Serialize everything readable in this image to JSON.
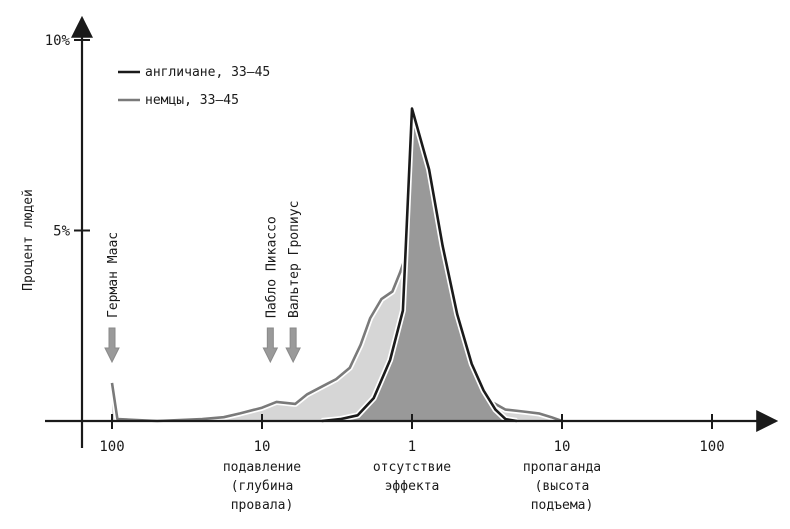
{
  "chart_data": {
    "type": "area",
    "ylabel": "Процент людей",
    "y_ticks": [
      {
        "value": 10,
        "label": "10%"
      },
      {
        "value": 5,
        "label": "5%"
      }
    ],
    "ylim": [
      0,
      10
    ],
    "x_ticks": [
      {
        "value": -100,
        "label": "100"
      },
      {
        "value": -10,
        "label": "10"
      },
      {
        "value": 1,
        "label": "1"
      },
      {
        "value": 10,
        "label": "10"
      },
      {
        "value": 100,
        "label": "100"
      }
    ],
    "category_labels": [
      {
        "at": -10,
        "lines": [
          "подавление",
          "(глубина",
          "провала)"
        ]
      },
      {
        "at": 1,
        "lines": [
          "отсутствие",
          "эффекта"
        ]
      },
      {
        "at": 10,
        "lines": [
          "пропаганда",
          "(высота",
          "подъема)"
        ]
      }
    ],
    "series": [
      {
        "name": "англичане, 33–45",
        "color": "#1a1a1a",
        "fill": "#999999",
        "points": [
          [
            -4.0,
            0
          ],
          [
            -3.0,
            0.05
          ],
          [
            -2.3,
            0.15
          ],
          [
            -1.8,
            0.6
          ],
          [
            -1.4,
            1.6
          ],
          [
            -1.15,
            2.9
          ],
          [
            1,
            8.2
          ],
          [
            1.3,
            6.6
          ],
          [
            1.6,
            4.6
          ],
          [
            2.0,
            2.8
          ],
          [
            2.5,
            1.5
          ],
          [
            3.0,
            0.8
          ],
          [
            3.6,
            0.3
          ],
          [
            4.2,
            0.05
          ],
          [
            5,
            0
          ]
        ]
      },
      {
        "name": "немцы, 33–45",
        "color": "#7a7a7a",
        "fill": "#d6d6d6",
        "points": [
          [
            -100,
            1.0
          ],
          [
            -92,
            0.05
          ],
          [
            -50,
            0
          ],
          [
            -25,
            0.05
          ],
          [
            -18,
            0.1
          ],
          [
            -14,
            0.2
          ],
          [
            -10,
            0.35
          ],
          [
            -8,
            0.5
          ],
          [
            -6,
            0.45
          ],
          [
            -5,
            0.7
          ],
          [
            -4,
            0.9
          ],
          [
            -3.2,
            1.1
          ],
          [
            -2.6,
            1.4
          ],
          [
            -2.2,
            2.0
          ],
          [
            -1.9,
            2.7
          ],
          [
            -1.6,
            3.2
          ],
          [
            -1.35,
            3.4
          ],
          [
            -1.2,
            3.9
          ],
          [
            1,
            4.8
          ],
          [
            1.15,
            4.3
          ],
          [
            1.3,
            3.6
          ],
          [
            1.5,
            3.8
          ],
          [
            1.7,
            3.0
          ],
          [
            2.0,
            2.1
          ],
          [
            2.4,
            1.2
          ],
          [
            2.9,
            0.7
          ],
          [
            3.4,
            0.5
          ],
          [
            4.2,
            0.3
          ],
          [
            5.5,
            0.25
          ],
          [
            7,
            0.2
          ],
          [
            8.5,
            0.1
          ],
          [
            10,
            0
          ]
        ]
      }
    ],
    "annotations": [
      {
        "text": "Герман Маас",
        "at": -100
      },
      {
        "text": "Пабло Пикассо",
        "at": -8.8
      },
      {
        "text": "Вальтер Гропиус",
        "at": -6.2
      }
    ]
  }
}
